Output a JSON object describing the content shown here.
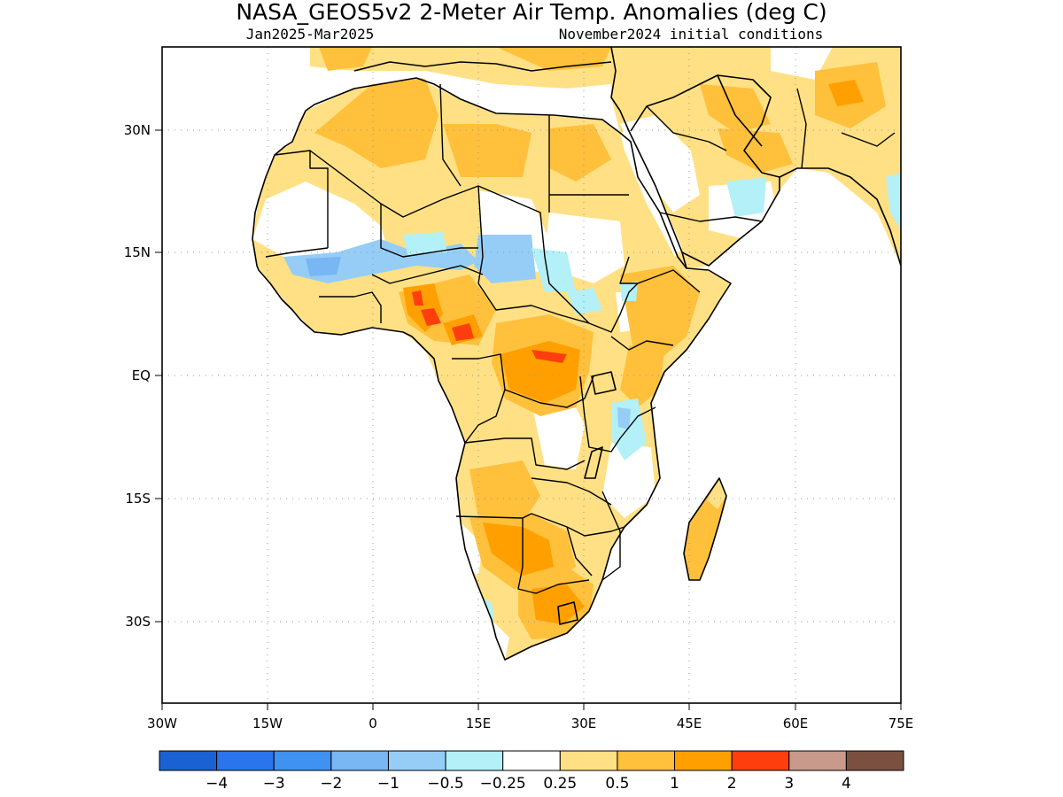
{
  "header": {
    "title": "NASA_GEOS5v2 2-Meter Air Temp. Anomalies (deg C)",
    "period": "Jan2025-Mar2025",
    "init": "November2024 initial conditions"
  },
  "map": {
    "lon_range": [
      -30,
      75
    ],
    "lat_range": [
      -40,
      40
    ],
    "x_ticks": [
      "30W",
      "15W",
      "0",
      "15E",
      "30E",
      "45E",
      "60E",
      "75E"
    ],
    "y_ticks": [
      "30N",
      "15N",
      "EQ",
      "15S",
      "30S"
    ],
    "gridlines": true
  },
  "colorbar": {
    "colors": [
      "#1a62d4",
      "#2a74ee",
      "#3f92f0",
      "#78b6f4",
      "#95cdf6",
      "#b3f0f7",
      "#ffffff",
      "#ffe084",
      "#ffc03c",
      "#ffa000",
      "#ff3e0e",
      "#c89a8c",
      "#7a5040"
    ],
    "labels": [
      "-4",
      "-3",
      "-2",
      "-1",
      "-0.5",
      "-0.25",
      "0.25",
      "0.5",
      "1",
      "2",
      "3",
      "4"
    ]
  },
  "chart_data": {
    "type": "heatmap",
    "title": "NASA_GEOS5v2 2-Meter Air Temp. Anomalies (deg C)",
    "subtitle": "Jan2025-Mar2025 / November2024 initial conditions",
    "variable": "2-meter air temperature anomaly",
    "units": "deg C",
    "xlim": [
      -30,
      75
    ],
    "ylim": [
      -40,
      40
    ],
    "regions": [
      {
        "area": "Northern Africa (Sahara)",
        "anomaly_class": "0.25 to 1"
      },
      {
        "area": "Northern Libya / Egypt coast",
        "anomaly_class": "-0.25 to 0.25"
      },
      {
        "area": "Western Sahel (Senegal-Mali)",
        "anomaly_class": "-1 to -0.25"
      },
      {
        "area": "Chad / Niger south",
        "anomaly_class": "-1 to -0.25"
      },
      {
        "area": "Nigeria / Cameroon",
        "anomaly_class": "1 to 3"
      },
      {
        "area": "Central Africa (DRC north)",
        "anomaly_class": "1 to 3"
      },
      {
        "area": "Ethiopia / Somalia",
        "anomaly_class": "0.25 to 1"
      },
      {
        "area": "East Africa (Kenya/Tanzania)",
        "anomaly_class": "-0.5 to 0.25"
      },
      {
        "area": "Southern Africa (Namibia/Botswana/S. Africa)",
        "anomaly_class": "1 to 2"
      },
      {
        "area": "Madagascar",
        "anomaly_class": "0.25 to 1"
      },
      {
        "area": "Arabian Peninsula",
        "anomaly_class": "-0.5 to 0.5"
      },
      {
        "area": "Iran / Afghanistan",
        "anomaly_class": "0.5 to 1"
      }
    ]
  }
}
